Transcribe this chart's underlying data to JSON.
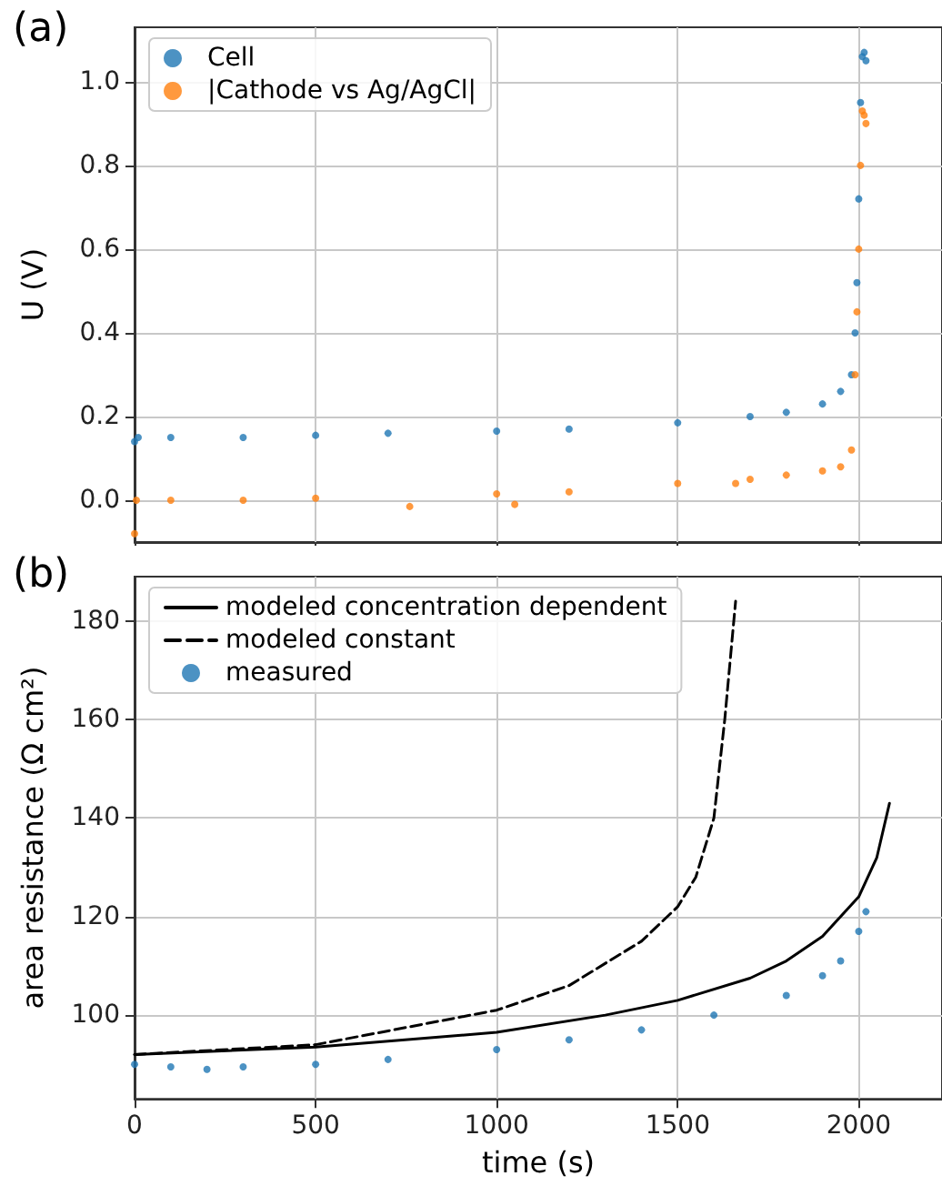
{
  "chart_data": [
    {
      "type": "scatter",
      "title": "(a)",
      "ylabel": "U (V)",
      "xlim": [
        0,
        2230
      ],
      "xticks": [
        0,
        500,
        1000,
        1500,
        2000
      ],
      "ylim": [
        -0.1,
        1.13
      ],
      "yticks": [
        {
          "value": 0,
          "label": "0.0"
        },
        {
          "value": 0.2,
          "label": "0.2"
        },
        {
          "value": 0.4,
          "label": "0.4"
        },
        {
          "value": 0.6,
          "label": "0.6"
        },
        {
          "value": 0.8,
          "label": "0.8"
        },
        {
          "value": 1,
          "label": "1.0"
        }
      ],
      "tick_labels": "y",
      "grid": true,
      "legend": "top left",
      "marker": "circle",
      "series": [
        {
          "name": "Cell",
          "color": "#1f77b4",
          "x": [
            0,
            10,
            100,
            300,
            500,
            700,
            1000,
            1200,
            1500,
            1700,
            1800,
            1900,
            1950,
            1980,
            1990,
            1995,
            2000,
            2005,
            2010,
            2015,
            2020
          ],
          "values": [
            0.14,
            0.15,
            0.15,
            0.15,
            0.155,
            0.16,
            0.165,
            0.17,
            0.185,
            0.2,
            0.21,
            0.23,
            0.26,
            0.3,
            0.4,
            0.52,
            0.72,
            0.95,
            1.06,
            1.07,
            1.05
          ]
        },
        {
          "name": "|Cathode vs Ag/AgCl|",
          "color": "#ff7f0e",
          "x": [
            0,
            5,
            100,
            300,
            500,
            760,
            1000,
            1050,
            1200,
            1500,
            1660,
            1700,
            1800,
            1900,
            1950,
            1980,
            1990,
            1995,
            2000,
            2005,
            2010,
            2015,
            2020
          ],
          "values": [
            -0.08,
            0.0,
            0.0,
            0.0,
            0.005,
            -0.015,
            0.015,
            -0.01,
            0.02,
            0.04,
            0.04,
            0.05,
            0.06,
            0.07,
            0.08,
            0.12,
            0.3,
            0.45,
            0.6,
            0.8,
            0.93,
            0.92,
            0.9
          ]
        }
      ]
    },
    {
      "type": "scatter",
      "title": "(b)",
      "xlabel": "time (s)",
      "ylabel": "area resistance (Ω cm²)",
      "xlim": [
        0,
        2230
      ],
      "xticks": [
        0,
        500,
        1000,
        1500,
        2000
      ],
      "ylim": [
        83,
        189
      ],
      "yticks": [
        100,
        120,
        140,
        160,
        180
      ],
      "grid": true,
      "legend": "top left",
      "series": [
        {
          "name": "modeled concentration dependent",
          "type": "line",
          "line_style": "solid",
          "marker": "none",
          "color": "#000000",
          "x": [
            0,
            500,
            1000,
            1300,
            1500,
            1700,
            1800,
            1900,
            2000,
            2050,
            2085
          ],
          "values": [
            92,
            93.5,
            96.5,
            100,
            103,
            107.5,
            111,
            116,
            124,
            132,
            143
          ]
        },
        {
          "name": "modeled constant",
          "type": "line",
          "line_style": "dashed",
          "marker": "none",
          "color": "#000000",
          "x": [
            0,
            500,
            1000,
            1200,
            1400,
            1500,
            1550,
            1600,
            1630,
            1660
          ],
          "values": [
            92,
            94,
            101,
            106,
            115,
            122,
            128,
            140,
            160,
            184
          ]
        },
        {
          "name": "measured",
          "marker": "circle",
          "color": "#1f77b4",
          "x": [
            0,
            100,
            200,
            300,
            500,
            700,
            1000,
            1200,
            1400,
            1600,
            1800,
            1900,
            1950,
            2000,
            2020
          ],
          "values": [
            90,
            89.5,
            89,
            89.5,
            90,
            91,
            93,
            95,
            97,
            100,
            104,
            108,
            111,
            117,
            121
          ]
        }
      ]
    }
  ]
}
